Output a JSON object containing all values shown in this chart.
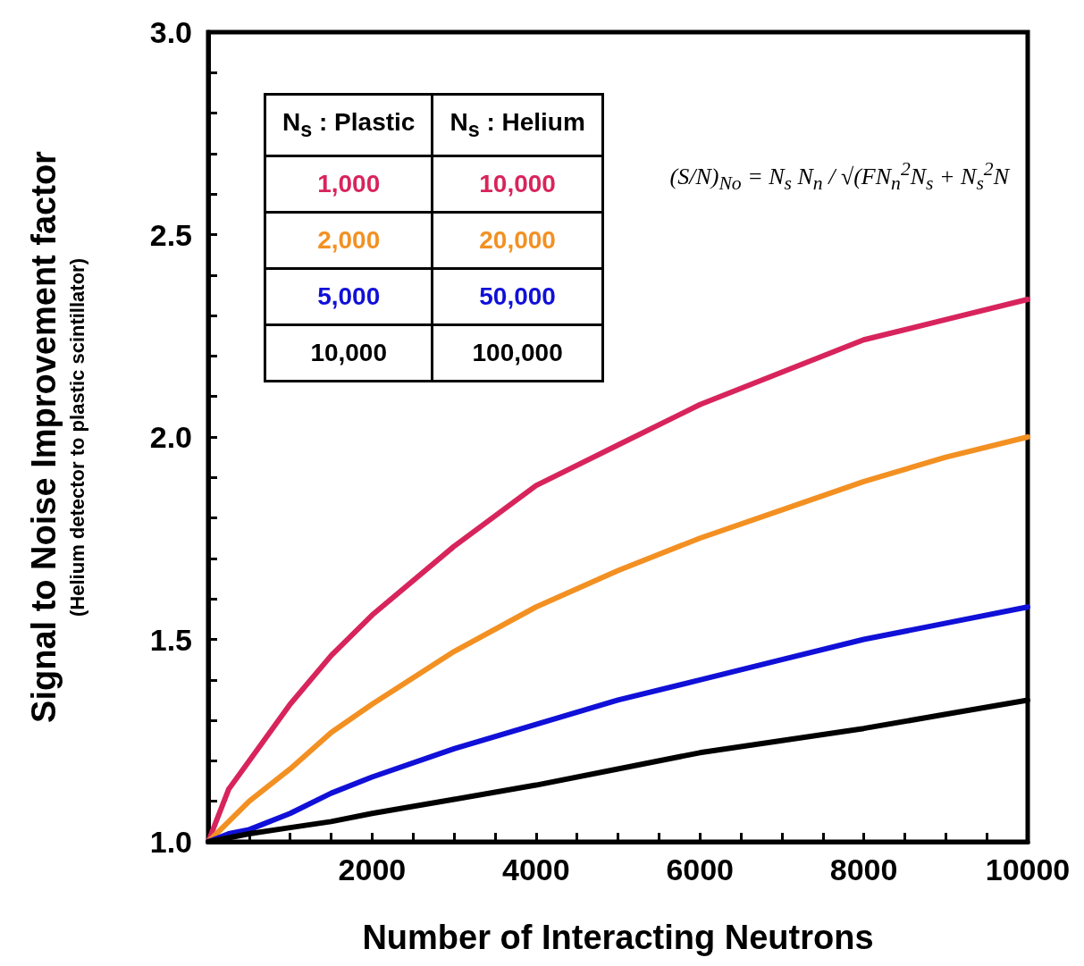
{
  "chart_data": {
    "type": "line",
    "xlabel": "Number of Interacting Neutrons",
    "ylabel": "Signal to Noise Improvement factor",
    "annotations": [
      "(Helium detector to plastic scintillator)",
      "N$_{s}$ : Plastic",
      "N$_{s}$ : Helium",
      "10,000",
      "20,000",
      "50,000",
      "100,000",
      "(S/N)$_{No}$ = N$_{s}$ N$_{n}$ / √(FN$_{n}$$^{2}$N$_{s}$ + N$_{s}$$^{2}$N"
    ],
    "x": [
      0,
      250,
      500,
      1000,
      1500,
      2000,
      3000,
      4000,
      5000,
      6000,
      7000,
      8000,
      9000,
      10000
    ],
    "series": [
      {
        "name": "1,000",
        "color": "#d8245c",
        "values": [
          1.0,
          1.13,
          1.2,
          1.34,
          1.46,
          1.56,
          1.73,
          1.88,
          1.98,
          2.08,
          2.16,
          2.24,
          2.29,
          2.34
        ]
      },
      {
        "name": "2,000",
        "color": "#f39022",
        "values": [
          1.0,
          1.05,
          1.1,
          1.18,
          1.27,
          1.34,
          1.47,
          1.58,
          1.67,
          1.75,
          1.82,
          1.89,
          1.95,
          2.0
        ]
      },
      {
        "name": "5,000",
        "color": "#1010d8",
        "values": [
          1.0,
          1.02,
          1.03,
          1.07,
          1.12,
          1.16,
          1.23,
          1.29,
          1.35,
          1.4,
          1.45,
          1.5,
          1.54,
          1.58
        ]
      },
      {
        "name": "10,000",
        "color": "#000000",
        "values": [
          1.0,
          1.01,
          1.02,
          1.035,
          1.05,
          1.07,
          1.105,
          1.14,
          1.18,
          1.22,
          1.25,
          1.28,
          1.315,
          1.35
        ]
      }
    ],
    "xlim": [
      0,
      10000
    ],
    "xticks": [
      {
        "value": 0,
        "label": null
      },
      {
        "value": 500,
        "label": null
      },
      {
        "value": 1000,
        "label": null
      },
      {
        "value": 1500,
        "label": null
      },
      2000,
      {
        "value": 2500,
        "label": null
      },
      {
        "value": 3000,
        "label": null
      },
      {
        "value": 3500,
        "label": null
      },
      4000,
      {
        "value": 4500,
        "label": null
      },
      {
        "value": 5000,
        "label": null
      },
      {
        "value": 5500,
        "label": null
      },
      6000,
      {
        "value": 6500,
        "label": null
      },
      {
        "value": 7000,
        "label": null
      },
      {
        "value": 7500,
        "label": null
      },
      8000,
      {
        "value": 8500,
        "label": null
      },
      {
        "value": 9000,
        "label": null
      },
      {
        "value": 9500,
        "label": null
      },
      10000
    ],
    "ylim": [
      1,
      3
    ],
    "yticks": [
      {
        "value": 1,
        "label": "1.0"
      },
      {
        "value": 1.1,
        "label": null
      },
      {
        "value": 1.2,
        "label": null
      },
      {
        "value": 1.3,
        "label": null
      },
      {
        "value": 1.4,
        "label": null
      },
      {
        "value": 1.5,
        "label": "1.5"
      },
      {
        "value": 1.6,
        "label": null
      },
      {
        "value": 1.7,
        "label": null
      },
      {
        "value": 1.8,
        "label": null
      },
      {
        "value": 1.9,
        "label": null
      },
      {
        "value": 2,
        "label": "2.0"
      },
      {
        "value": 2.1,
        "label": null
      },
      {
        "value": 2.2,
        "label": null
      },
      {
        "value": 2.3,
        "label": null
      },
      {
        "value": 2.4,
        "label": null
      },
      {
        "value": 2.5,
        "label": "2.5"
      },
      {
        "value": 2.6,
        "label": null
      },
      {
        "value": 2.7,
        "label": null
      },
      {
        "value": 2.8,
        "label": null
      },
      {
        "value": 2.9,
        "label": null
      },
      {
        "value": 3,
        "label": "3.0"
      }
    ],
    "grid": false,
    "legend": "top left",
    "marker": "none",
    "line_style": "solid"
  }
}
